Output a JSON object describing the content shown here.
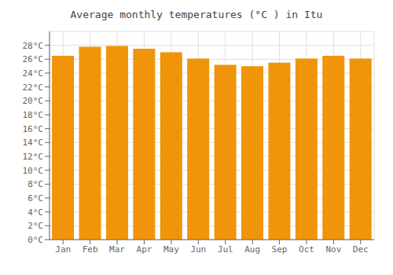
{
  "chart_data": {
    "type": "bar",
    "title": "Average monthly temperatures (°C ) in Itu",
    "categories": [
      "Jan",
      "Feb",
      "Mar",
      "Apr",
      "May",
      "Jun",
      "Jul",
      "Aug",
      "Sep",
      "Oct",
      "Nov",
      "Dec"
    ],
    "values": [
      26.5,
      27.8,
      27.9,
      27.5,
      27.0,
      26.1,
      25.2,
      25.0,
      25.5,
      26.1,
      26.5,
      26.1
    ],
    "color": "#F0940A",
    "ylim": [
      0,
      30
    ],
    "yticks": [
      {
        "value": 0,
        "label": "0°C"
      },
      {
        "value": 2,
        "label": "2°C"
      },
      {
        "value": 4,
        "label": "4°C"
      },
      {
        "value": 6,
        "label": "6°C"
      },
      {
        "value": 8,
        "label": "8°C"
      },
      {
        "value": 10,
        "label": "10°C"
      },
      {
        "value": 12,
        "label": "12°C"
      },
      {
        "value": 14,
        "label": "14°C"
      },
      {
        "value": 16,
        "label": "16°C"
      },
      {
        "value": 18,
        "label": "18°C"
      },
      {
        "value": 20,
        "label": "20°C"
      },
      {
        "value": 22,
        "label": "22°C"
      },
      {
        "value": 24,
        "label": "24°C"
      },
      {
        "value": 26,
        "label": "26°C"
      },
      {
        "value": 28,
        "label": "28°C"
      }
    ],
    "grid": true
  }
}
